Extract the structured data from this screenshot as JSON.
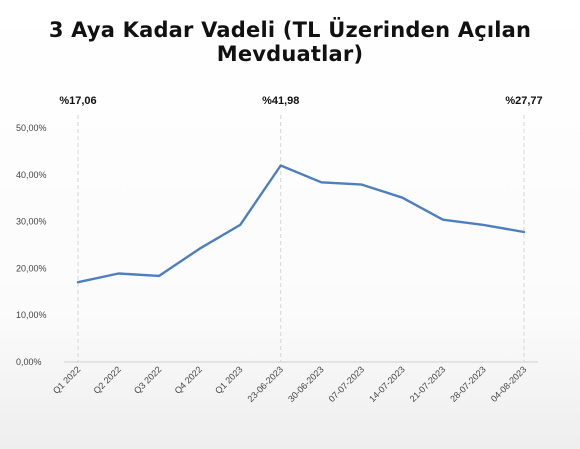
{
  "chart_data": {
    "type": "line",
    "title": "3 Aya Kadar Vadeli (TL Üzerinden Açılan Mevduatlar)",
    "xlabel": "",
    "ylabel": "",
    "categories": [
      "Q1 2022",
      "Q2 2022",
      "Q3 2022",
      "Q4 2022",
      "Q1 2023",
      "23-06-2023",
      "30-06-2023",
      "07-07-2023",
      "14-07-2023",
      "21-07-2023",
      "28-07-2023",
      "04-08-2023"
    ],
    "series": [
      {
        "values": [
          17.06,
          18.9,
          18.4,
          24.2,
          29.3,
          41.98,
          38.4,
          37.9,
          35.1,
          30.4,
          29.3,
          27.77
        ]
      }
    ],
    "ylim": [
      0,
      50
    ],
    "yticks": [
      "0,00%",
      "10,00%",
      "20,00%",
      "30,00%",
      "40,00%",
      "50,00%"
    ],
    "grid": false,
    "line_color": "#4e7fbd",
    "annotations": [
      {
        "category_index": 0,
        "text": "%17,06"
      },
      {
        "category_index": 5,
        "text": "%41,98"
      },
      {
        "category_index": 11,
        "text": "%27,77"
      }
    ]
  }
}
